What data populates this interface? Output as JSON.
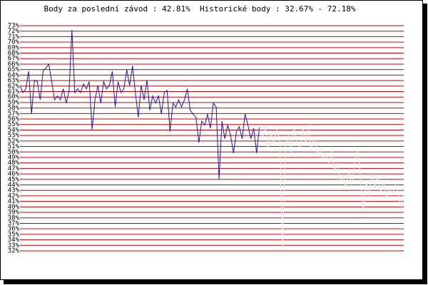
{
  "chart_data": {
    "type": "line",
    "title": "Body za poslední závod : 42.81%  Historické body : 32.67% - 72.18%",
    "x": [
      1,
      2,
      3,
      4,
      5,
      6,
      7,
      8,
      9,
      10,
      11,
      12,
      13,
      14,
      15,
      16,
      17,
      18,
      19,
      20,
      21,
      22,
      23,
      24,
      25,
      26,
      27,
      28,
      29,
      30,
      31,
      32,
      33,
      34,
      35,
      36,
      37,
      38,
      39,
      40,
      41,
      42,
      43,
      44,
      45,
      46,
      47,
      48,
      49,
      50,
      51,
      52,
      53,
      54,
      55,
      56,
      57,
      58,
      59,
      60,
      61,
      62,
      63,
      64,
      65,
      66,
      67,
      68,
      69,
      70,
      71,
      72,
      73,
      74,
      75,
      76,
      77,
      78,
      79,
      80,
      81,
      82,
      83,
      84,
      85,
      86,
      87,
      88,
      89,
      90,
      91,
      92,
      93,
      94,
      95,
      96,
      97,
      98,
      99,
      100,
      101,
      102,
      103,
      104,
      105,
      106,
      107,
      108,
      109,
      110,
      111,
      112,
      113,
      114,
      115,
      116,
      117,
      118,
      119,
      120,
      121,
      122,
      123,
      124,
      125,
      126,
      127,
      128,
      129,
      130,
      131,
      132,
      133,
      134
    ],
    "xlim": [
      1,
      134
    ],
    "series": [
      {
        "color": "#1a1aa6",
        "values": [
          62.1,
          60.8,
          61.5,
          64.7,
          56.9,
          63.1,
          62.8,
          59.5,
          64.7,
          65.3,
          66,
          62.8,
          59.5,
          60.2,
          59.5,
          61.5,
          58.9,
          61,
          72.18,
          60.8,
          61.5,
          60.8,
          62.4,
          61.5,
          62.8,
          54.1,
          59.5,
          62.1,
          58.9,
          62.8,
          61.5,
          62.1,
          64.7,
          58.2,
          62.8,
          60.8,
          61.5,
          65,
          62.1,
          65.7,
          60.8,
          56.3,
          62.1,
          59.5,
          63.1,
          57.6,
          60.2,
          58.9,
          60.2,
          56.9,
          60.8,
          61.2,
          53.7,
          58.9,
          58.2,
          59.5,
          58.2,
          59.5,
          61.5,
          57.6,
          56.9,
          56.3,
          51.7,
          55.6,
          54.9,
          56.9,
          54.3,
          58.9,
          58.2,
          45,
          55.6,
          52.4,
          54.9,
          53,
          49.8,
          53.7,
          54.6,
          52.4,
          56.9,
          54.9,
          52.4,
          54.3,
          49.8,
          54.6,
          null,
          null,
          null,
          null,
          null,
          null,
          null,
          null,
          null,
          null,
          null,
          null,
          null,
          null,
          null,
          null,
          null,
          null,
          null,
          null,
          null,
          null,
          null,
          null,
          null,
          null,
          null,
          null,
          null,
          null,
          null,
          null,
          null,
          null,
          null,
          null,
          null,
          null,
          null,
          null,
          null,
          null,
          null,
          null,
          null,
          null,
          null,
          null,
          null,
          null
        ]
      },
      {
        "color": "#f2f2f2",
        "values": [
          null,
          null,
          null,
          null,
          null,
          null,
          null,
          null,
          null,
          null,
          null,
          null,
          null,
          null,
          null,
          null,
          null,
          null,
          null,
          null,
          null,
          null,
          null,
          null,
          null,
          null,
          null,
          null,
          null,
          null,
          null,
          null,
          null,
          null,
          null,
          null,
          null,
          null,
          null,
          null,
          null,
          null,
          null,
          null,
          null,
          null,
          null,
          null,
          null,
          null,
          null,
          null,
          null,
          null,
          null,
          null,
          null,
          null,
          null,
          null,
          null,
          null,
          null,
          null,
          null,
          null,
          null,
          null,
          null,
          null,
          null,
          null,
          null,
          null,
          null,
          null,
          null,
          null,
          null,
          null,
          null,
          null,
          null,
          54.6,
          52.4,
          54.9,
          50.5,
          53.7,
          51.5,
          54,
          52.4,
          32.67,
          51.1,
          53,
          49.8,
          54.3,
          52,
          50.5,
          54.6,
          51.5,
          55,
          50.2,
          52.8,
          49.5,
          50.8,
          48.5,
          49.8,
          47.5,
          50.2,
          46.5,
          48,
          44.6,
          45.5,
          43.2,
          46.8,
          44,
          48.2,
          50.8,
          45,
          39.4,
          44.6,
          42,
          46,
          43.5,
          45.5,
          42.7,
          44.8,
          41.5,
          43.8,
          42.2,
          44,
          42.8,
          40,
          42.81
        ]
      }
    ],
    "ylim": [
      32,
      73
    ],
    "yticks": [
      {
        "value": 73,
        "label": "73%"
      },
      {
        "value": 72,
        "label": "72%"
      },
      {
        "value": 71,
        "label": "71%"
      },
      {
        "value": 70,
        "label": "70%"
      },
      {
        "value": 69,
        "label": "69%"
      },
      {
        "value": 68,
        "label": "68%"
      },
      {
        "value": 67,
        "label": "67%"
      },
      {
        "value": 66,
        "label": "66%"
      },
      {
        "value": 65,
        "label": "65%"
      },
      {
        "value": 64,
        "label": "64%"
      },
      {
        "value": 63,
        "label": "63%"
      },
      {
        "value": 62,
        "label": "62%"
      },
      {
        "value": 61,
        "label": "61%"
      },
      {
        "value": 60,
        "label": "60%"
      },
      {
        "value": 59,
        "label": "59%"
      },
      {
        "value": 58,
        "label": "58%"
      },
      {
        "value": 57,
        "label": "57%"
      },
      {
        "value": 56,
        "label": "56%"
      },
      {
        "value": 55,
        "label": "55%"
      },
      {
        "value": 54,
        "label": "54%"
      },
      {
        "value": 53,
        "label": "53%"
      },
      {
        "value": 52,
        "label": "52%"
      },
      {
        "value": 51,
        "label": "51%"
      },
      {
        "value": 50,
        "label": "50%"
      },
      {
        "value": 49,
        "label": "49%"
      },
      {
        "value": 48,
        "label": "48%"
      },
      {
        "value": 47,
        "label": "47%"
      },
      {
        "value": 46,
        "label": "46%"
      },
      {
        "value": 45,
        "label": "45%"
      },
      {
        "value": 44,
        "label": "44%"
      },
      {
        "value": 43,
        "label": "43%"
      },
      {
        "value": 42,
        "label": "42%"
      },
      {
        "value": 41,
        "label": "41%"
      },
      {
        "value": 40,
        "label": "40%"
      },
      {
        "value": 39,
        "label": "39%"
      },
      {
        "value": 38,
        "label": "38%"
      },
      {
        "value": 37,
        "label": "37%"
      },
      {
        "value": 36,
        "label": "36%"
      },
      {
        "value": 35,
        "label": "35%"
      },
      {
        "value": 34,
        "label": "34%"
      },
      {
        "value": 33,
        "label": "33%"
      },
      {
        "value": 32,
        "label": "32%"
      }
    ],
    "grid": true,
    "grid_color": "#cc0000"
  }
}
